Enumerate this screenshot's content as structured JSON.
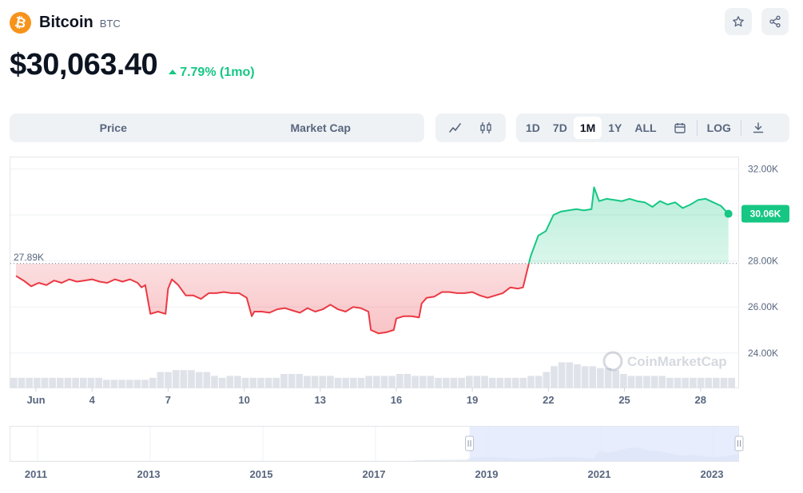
{
  "coin": {
    "logo_glyph": "₿",
    "name": "Bitcoin",
    "symbol": "BTC",
    "brand_color": "#f7931a"
  },
  "header_icons": [
    "star-icon",
    "share-icon"
  ],
  "price": {
    "value": "$30,063.40",
    "change": "7.79% (1mo)",
    "change_color": "#16c784"
  },
  "tabs": [
    "Price",
    "Market Cap"
  ],
  "chart_type_icons": [
    "line-chart-icon",
    "candlestick-icon"
  ],
  "ranges": {
    "items": [
      "1D",
      "7D",
      "1M",
      "1Y",
      "ALL"
    ],
    "active": "1M",
    "log_label": "LOG"
  },
  "watermark": "CoinMarketCap",
  "chart_data": {
    "type": "area",
    "title": "",
    "y_ticks": [
      "32.00K",
      "30.00K",
      "28.00K",
      "26.00K",
      "24.00K"
    ],
    "y_tick_values": [
      32000,
      30000,
      28000,
      26000,
      24000
    ],
    "ylim": [
      22500,
      32500
    ],
    "x_ticks": [
      "Jun",
      "4",
      "7",
      "10",
      "13",
      "16",
      "19",
      "22",
      "25",
      "28"
    ],
    "x_tick_days": [
      1,
      4,
      7,
      10,
      13,
      16,
      19,
      22,
      25,
      28
    ],
    "baseline": {
      "label": "27.89K",
      "value": 27890
    },
    "current": {
      "label": "30.06K",
      "value": 30063.4
    },
    "colors": {
      "up": "#16c784",
      "down": "#ea3943"
    },
    "series": [
      {
        "x": [
          1,
          1.3,
          1.6,
          1.9,
          2.2,
          2.5,
          2.8,
          3.1,
          3.4,
          3.7,
          4,
          4.3,
          4.6,
          4.9,
          5.2,
          5.5,
          5.8,
          5.95,
          6.1,
          6.3,
          6.6,
          6.9,
          7,
          7.15,
          7.4,
          7.7,
          8,
          8.3,
          8.6,
          8.9,
          9.2,
          9.5,
          9.8,
          10.1,
          10.3,
          10.4,
          10.7,
          11,
          11.3,
          11.6,
          11.9,
          12.2,
          12.5,
          12.8,
          13.1,
          13.4,
          13.7,
          14,
          14.3,
          14.6,
          14.9,
          15,
          15.3,
          15.6,
          15.9,
          16,
          16.3,
          16.6,
          16.9,
          17,
          17.2,
          17.5,
          17.8,
          18.1,
          18.4,
          18.7,
          19,
          19.3,
          19.6,
          19.9,
          20.2,
          20.5,
          20.8,
          21,
          21.3,
          21.6,
          21.9,
          22.2,
          22.5,
          22.8,
          23.1,
          23.4,
          23.7,
          23.8,
          24,
          24.3,
          24.6,
          24.9,
          25.2,
          25.5,
          25.8,
          26.1,
          26.4,
          26.7,
          27,
          27.3,
          27.6,
          27.9,
          28.2,
          28.5,
          28.8,
          29.1
        ],
        "y": [
          27350,
          27150,
          26900,
          27050,
          26950,
          27150,
          27050,
          27200,
          27100,
          27150,
          27200,
          27100,
          27050,
          27200,
          27100,
          27200,
          27050,
          26850,
          26950,
          25700,
          25800,
          25700,
          26800,
          27200,
          26950,
          26500,
          26500,
          26350,
          26600,
          26600,
          26650,
          26600,
          26600,
          26400,
          25600,
          25800,
          25800,
          25750,
          25900,
          25950,
          25850,
          25750,
          25950,
          25800,
          25900,
          26100,
          25900,
          25800,
          26000,
          25950,
          25800,
          25000,
          24850,
          24900,
          25000,
          25500,
          25600,
          25600,
          25550,
          26150,
          26400,
          26450,
          26650,
          26650,
          26600,
          26600,
          26650,
          26500,
          26400,
          26500,
          26600,
          26850,
          26800,
          26850,
          28200,
          29100,
          29300,
          30000,
          30150,
          30200,
          30250,
          30200,
          30250,
          31200,
          30600,
          30700,
          30650,
          30600,
          30700,
          30600,
          30550,
          30350,
          30600,
          30450,
          30550,
          30300,
          30450,
          30650,
          30700,
          30550,
          30400,
          30050
        ]
      }
    ],
    "volume": [
      5,
      5,
      5,
      5,
      5,
      5,
      5,
      5,
      5,
      5,
      5,
      5,
      4,
      4,
      4,
      4,
      4,
      4,
      5,
      8,
      8,
      9,
      9,
      9,
      8,
      8,
      6,
      5,
      6,
      6,
      5,
      5,
      5,
      5,
      5,
      7,
      7,
      7,
      6,
      6,
      6,
      6,
      5,
      5,
      5,
      5,
      6,
      6,
      6,
      6,
      7,
      7,
      6,
      6,
      6,
      5,
      5,
      5,
      5,
      6,
      6,
      6,
      5,
      5,
      5,
      5,
      5,
      6,
      6,
      8,
      11,
      13,
      13,
      12,
      11,
      11,
      10,
      10,
      9,
      7,
      6,
      6,
      6,
      6,
      6,
      5,
      5,
      5,
      5,
      5,
      5,
      5,
      5,
      5
    ]
  },
  "overview": {
    "years": [
      "2011",
      "2013",
      "2015",
      "2017",
      "2019",
      "2021",
      "2023"
    ],
    "selection": {
      "from": 0.63,
      "to": 1.0
    }
  }
}
